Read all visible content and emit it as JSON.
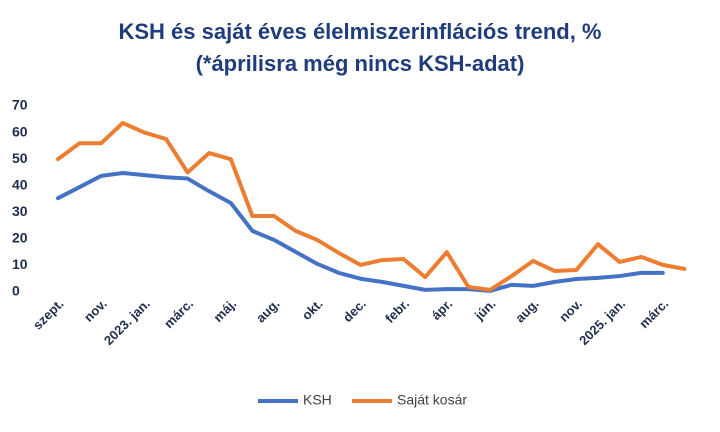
{
  "chart_data": {
    "type": "line",
    "title": "KSH és saját éves élelmiszerinflációs trend, %",
    "subtitle": "(*áprilisra még nincs KSH-adat)",
    "categories": [
      "szept.",
      null,
      "nov.",
      null,
      "2023. jan.",
      null,
      "márc.",
      null,
      "máj.",
      null,
      "aug.",
      null,
      "okt.",
      null,
      "dec.",
      null,
      "febr.",
      null,
      "ápr.",
      null,
      "jún.",
      null,
      "aug.",
      null,
      "nov.",
      null,
      "2025. jan.",
      null,
      "márc.",
      null
    ],
    "series": [
      {
        "name": "KSH",
        "color": "#4472c4",
        "values": [
          35.3,
          39.5,
          43.7,
          44.8,
          44,
          43.2,
          42.7,
          37.9,
          33.5,
          23,
          19.6,
          15.1,
          10.6,
          7.2,
          5,
          3.8,
          2.3,
          0.8,
          1.1,
          1.1,
          0.4,
          2.7,
          2.3,
          3.8,
          4.9,
          5.3,
          6,
          7.2,
          7.2,
          null
        ]
      },
      {
        "name": "Saját kosár",
        "color": "#ed7d31",
        "values": [
          50,
          56,
          56,
          63.6,
          60,
          57.6,
          45,
          52.3,
          50,
          28.6,
          28.6,
          23,
          19.6,
          14.7,
          10.2,
          12,
          12.4,
          5.6,
          15,
          1.9,
          0.8,
          6,
          11.7,
          7.9,
          8.3,
          18,
          11.3,
          13.2,
          10.2,
          8.7
        ]
      }
    ],
    "ylim": [
      0,
      70
    ],
    "yticks": [
      0,
      10,
      20,
      30,
      40,
      50,
      60,
      70
    ],
    "grid": false,
    "legend": "bottom"
  }
}
